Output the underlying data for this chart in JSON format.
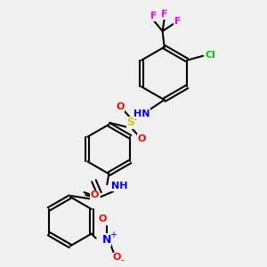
{
  "background_color": "#f0f0f0",
  "bond_color": "#000000",
  "atom_colors": {
    "N": "#0000FF",
    "O": "#FF0000",
    "S": "#CCCC00",
    "F": "#FF00FF",
    "Cl": "#00CC00",
    "C": "#000000",
    "H": "#000000"
  },
  "figsize": [
    3.0,
    3.0
  ],
  "dpi": 100
}
